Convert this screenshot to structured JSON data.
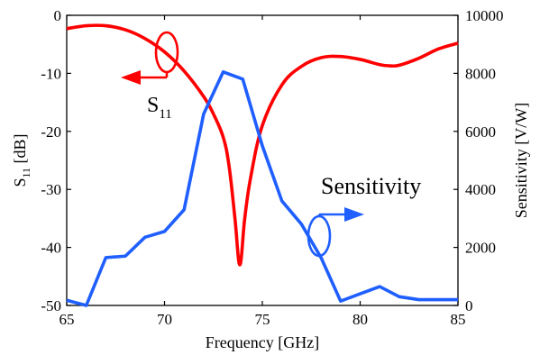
{
  "chart_data": {
    "type": "line",
    "xlabel": "Frequency [GHz]",
    "ylabel_left": {
      "main": "S",
      "sub": "11",
      "rest": " [dB]"
    },
    "ylabel_right": "Sensitivity [V/W]",
    "xlim": [
      65,
      85
    ],
    "ylim_left": [
      -50,
      0
    ],
    "ylim_right": [
      0,
      10000
    ],
    "x_ticks": [
      65,
      70,
      75,
      80,
      85
    ],
    "y_ticks_left": [
      0,
      -10,
      -20,
      -30,
      -40,
      -50
    ],
    "y_ticks_right": [
      0,
      2000,
      4000,
      6000,
      8000,
      10000
    ],
    "x_tick_labels": [
      "65",
      "70",
      "75",
      "80",
      "85"
    ],
    "y_tick_labels_left": [
      "0",
      "-10",
      "-20",
      "-30",
      "-40",
      "-50"
    ],
    "y_tick_labels_right": [
      "0",
      "2000",
      "4000",
      "6000",
      "8000",
      "10000"
    ],
    "grid": false,
    "series": [
      {
        "axis": "left",
        "color": "#ff0000",
        "x": [
          65,
          66,
          67,
          68,
          69,
          70,
          71,
          72,
          72.5,
          73,
          73.3,
          73.6,
          73.85,
          74.1,
          74.4,
          75,
          76,
          77,
          78,
          79,
          80,
          81,
          81.5,
          82,
          83,
          84,
          85
        ],
        "y": [
          -2.3,
          -1.8,
          -1.8,
          -2.5,
          -4.0,
          -6.3,
          -9.6,
          -14.0,
          -17.0,
          -21.0,
          -26.0,
          -35.0,
          -43.0,
          -35.0,
          -28.0,
          -19.0,
          -12.0,
          -8.8,
          -7.3,
          -7.1,
          -7.6,
          -8.5,
          -8.7,
          -8.6,
          -7.4,
          -5.8,
          -4.8
        ]
      },
      {
        "axis": "right",
        "color": "#1f5fff",
        "x": [
          65,
          66,
          67,
          68,
          69,
          70,
          71,
          72,
          73,
          74,
          75,
          76,
          77,
          78,
          79,
          80,
          81,
          82,
          83,
          84,
          85
        ],
        "y": [
          180,
          0,
          1650,
          1700,
          2350,
          2550,
          3300,
          6600,
          8050,
          7800,
          5500,
          3600,
          2800,
          1650,
          150,
          400,
          650,
          300,
          200,
          200,
          200
        ]
      }
    ],
    "annotations": {
      "s11": {
        "main": "S",
        "sub": "11"
      },
      "sensitivity": "Sensitivity"
    }
  }
}
